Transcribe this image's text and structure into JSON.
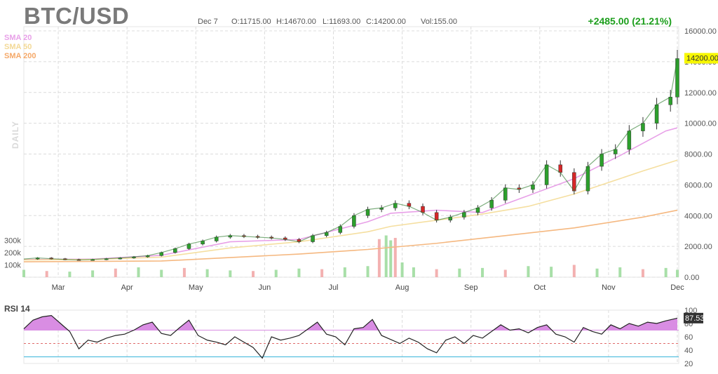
{
  "header": {
    "title": "BTC/USD",
    "date": "Dec 7",
    "open": "O:11715.00",
    "high": "H:14670.00",
    "low": "L:11693.00",
    "close": "C:14200.00",
    "volume": "Vol:155.00",
    "change": "+2485.00 (21.21%)"
  },
  "legend": {
    "sma20": "SMA 20",
    "sma50": "SMA 50",
    "sma200": "SMA 200",
    "period": "DAILY"
  },
  "rsi": {
    "label": "RSI 14",
    "current": "87.53"
  },
  "colors": {
    "up": "#2ca02c",
    "down": "#d62728",
    "sma20": "#e8a0e8",
    "sma50": "#f5dfa0",
    "sma200": "#f5b880",
    "rsi_fill": "#d98de3",
    "price_tag": "#f7f700"
  },
  "chart_data": [
    {
      "type": "line",
      "title": "BTC/USD",
      "ylim": [
        0,
        16000
      ],
      "price_ticks": [
        "0.00",
        "2000.00",
        "4000.00",
        "6000.00",
        "8000.00",
        "10000.00",
        "12000.00",
        "14000.00",
        "16000.00"
      ],
      "x_months": [
        "Mar",
        "Apr",
        "May",
        "Jun",
        "Jul",
        "Aug",
        "Sep",
        "Oct",
        "Nov",
        "Dec"
      ],
      "last_price_label": "14200.00",
      "series": [
        {
          "name": "Close",
          "x": [
            0,
            6,
            12,
            18,
            24,
            30,
            36,
            42,
            48,
            54,
            60,
            66,
            72,
            78,
            84,
            90,
            96,
            102,
            108,
            114,
            120,
            126,
            132,
            138,
            144,
            150,
            156,
            162,
            168,
            174,
            180,
            186,
            192,
            198,
            204,
            210,
            216,
            222,
            228,
            234,
            240,
            246,
            252,
            258,
            264,
            270,
            276,
            282,
            285
          ],
          "values": [
            1180,
            1250,
            1200,
            1150,
            1120,
            1150,
            1200,
            1250,
            1320,
            1400,
            1600,
            1850,
            2150,
            2350,
            2600,
            2700,
            2650,
            2600,
            2550,
            2450,
            2300,
            2700,
            2900,
            3300,
            4000,
            4400,
            4500,
            4800,
            4600,
            4200,
            3700,
            3900,
            4200,
            4500,
            5000,
            5800,
            5700,
            6000,
            7300,
            6800,
            5600,
            7200,
            8000,
            8300,
            9500,
            10000,
            11200,
            11700,
            14200
          ]
        },
        {
          "name": "SMA 20",
          "x": [
            0,
            30,
            60,
            90,
            120,
            150,
            160,
            180,
            200,
            220,
            240,
            260,
            270,
            280,
            285
          ],
          "values": [
            1150,
            1170,
            1420,
            2300,
            2450,
            3600,
            4150,
            4350,
            4200,
            5300,
            6400,
            7900,
            8700,
            9500,
            9700
          ]
        },
        {
          "name": "SMA 50",
          "x": [
            0,
            30,
            60,
            90,
            120,
            150,
            160,
            180,
            200,
            220,
            240,
            260,
            270,
            285
          ],
          "values": [
            1120,
            1150,
            1300,
            1900,
            2300,
            2950,
            3300,
            3700,
            4100,
            4600,
            5400,
            6400,
            6900,
            7600
          ]
        },
        {
          "name": "SMA 200",
          "x": [
            0,
            60,
            120,
            150,
            180,
            210,
            240,
            270,
            285
          ],
          "values": [
            1000,
            1050,
            1500,
            1800,
            2200,
            2700,
            3200,
            3900,
            4350
          ]
        }
      ]
    },
    {
      "type": "bar",
      "title": "Volume",
      "y_ticks": [
        "100k",
        "200k",
        "300k"
      ],
      "series": [
        {
          "name": "Volume",
          "x": [
            0,
            10,
            20,
            30,
            40,
            50,
            60,
            70,
            80,
            90,
            100,
            110,
            120,
            130,
            140,
            150,
            155,
            158,
            160,
            162,
            165,
            170,
            180,
            190,
            200,
            210,
            220,
            230,
            240,
            250,
            260,
            270,
            280,
            285
          ],
          "values": [
            60,
            50,
            45,
            55,
            70,
            80,
            60,
            75,
            65,
            55,
            50,
            60,
            70,
            65,
            80,
            90,
            310,
            340,
            300,
            320,
            120,
            80,
            65,
            70,
            75,
            60,
            90,
            85,
            100,
            70,
            80,
            65,
            75,
            60
          ]
        }
      ]
    },
    {
      "type": "line",
      "title": "RSI 14",
      "ylim": [
        20,
        100
      ],
      "y_ticks": [
        "20",
        "40",
        "60",
        "80",
        "100"
      ],
      "series": [
        {
          "name": "RSI 14",
          "x": [
            0,
            4,
            8,
            12,
            16,
            20,
            24,
            28,
            32,
            36,
            40,
            44,
            48,
            52,
            56,
            60,
            64,
            68,
            72,
            76,
            80,
            84,
            88,
            92,
            96,
            100,
            104,
            108,
            112,
            116,
            120,
            124,
            128,
            132,
            136,
            140,
            144,
            148,
            152,
            156,
            160,
            164,
            168,
            172,
            176,
            180,
            184,
            188,
            192,
            196,
            200,
            204,
            208,
            212,
            216,
            220,
            224,
            228,
            232,
            236,
            240,
            244,
            248,
            252,
            256,
            260,
            264,
            268,
            272,
            276,
            280,
            285
          ],
          "values": [
            72,
            85,
            90,
            92,
            80,
            68,
            42,
            55,
            52,
            58,
            62,
            64,
            70,
            78,
            82,
            65,
            62,
            74,
            85,
            62,
            55,
            52,
            48,
            60,
            52,
            44,
            28,
            60,
            55,
            58,
            62,
            72,
            82,
            64,
            60,
            48,
            72,
            74,
            86,
            62,
            56,
            50,
            58,
            52,
            42,
            36,
            55,
            60,
            50,
            62,
            58,
            68,
            78,
            70,
            72,
            66,
            74,
            78,
            64,
            60,
            52,
            74,
            68,
            64,
            78,
            72,
            80,
            76,
            82,
            80,
            84,
            88
          ]
        }
      ]
    }
  ]
}
